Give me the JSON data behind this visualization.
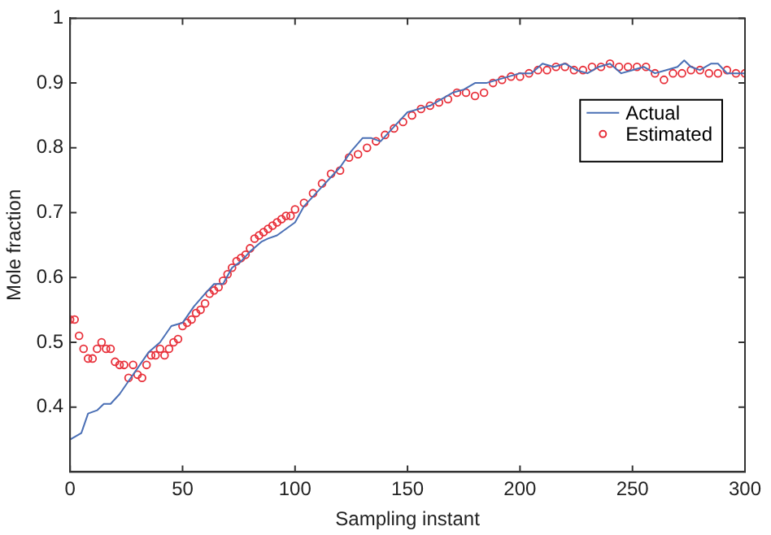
{
  "chart_data": {
    "type": "line",
    "xlabel": "Sampling instant",
    "ylabel": "Mole fraction",
    "xlim": [
      0,
      300
    ],
    "xticks": [
      0,
      50,
      100,
      150,
      200,
      250,
      300
    ],
    "ylim": [
      0.3,
      1
    ],
    "yticks": [
      0.4,
      0.5,
      0.6,
      0.7,
      0.8,
      0.9,
      1
    ],
    "grid": false,
    "legend": "right",
    "series": [
      {
        "name": "Actual",
        "color": "#4a6fb5",
        "marker": "none",
        "x": [
          0,
          5,
          8,
          12,
          15,
          18,
          22,
          26,
          30,
          35,
          40,
          45,
          50,
          55,
          60,
          64,
          68,
          72,
          76,
          80,
          85,
          88,
          92,
          96,
          100,
          104,
          108,
          112,
          116,
          120,
          125,
          130,
          134,
          138,
          142,
          146,
          150,
          155,
          160,
          165,
          170,
          175,
          180,
          185,
          190,
          195,
          200,
          205,
          210,
          215,
          220,
          225,
          230,
          235,
          240,
          245,
          250,
          255,
          260,
          265,
          270,
          273,
          276,
          280,
          285,
          288,
          292,
          296,
          300
        ],
        "values": [
          0.35,
          0.36,
          0.39,
          0.395,
          0.405,
          0.405,
          0.42,
          0.44,
          0.46,
          0.485,
          0.5,
          0.525,
          0.53,
          0.555,
          0.575,
          0.59,
          0.59,
          0.615,
          0.625,
          0.64,
          0.655,
          0.66,
          0.665,
          0.675,
          0.685,
          0.71,
          0.725,
          0.74,
          0.755,
          0.77,
          0.795,
          0.815,
          0.815,
          0.81,
          0.825,
          0.84,
          0.855,
          0.86,
          0.865,
          0.875,
          0.885,
          0.89,
          0.9,
          0.9,
          0.905,
          0.91,
          0.915,
          0.915,
          0.93,
          0.925,
          0.93,
          0.92,
          0.915,
          0.925,
          0.93,
          0.915,
          0.92,
          0.925,
          0.915,
          0.92,
          0.925,
          0.935,
          0.925,
          0.92,
          0.93,
          0.93,
          0.915,
          0.915,
          0.915
        ]
      },
      {
        "name": "Estimated",
        "type": "scatter",
        "color": "#e8303a",
        "marker": "circle",
        "x": [
          0,
          2,
          4,
          6,
          8,
          10,
          12,
          14,
          16,
          18,
          20,
          22,
          24,
          26,
          28,
          30,
          32,
          34,
          36,
          38,
          40,
          42,
          44,
          46,
          48,
          50,
          52,
          54,
          56,
          58,
          60,
          62,
          64,
          66,
          68,
          70,
          72,
          74,
          76,
          78,
          80,
          82,
          84,
          86,
          88,
          90,
          92,
          94,
          96,
          98,
          100,
          104,
          108,
          112,
          116,
          120,
          124,
          128,
          132,
          136,
          140,
          144,
          148,
          152,
          156,
          160,
          164,
          168,
          172,
          176,
          180,
          184,
          188,
          192,
          196,
          200,
          204,
          208,
          212,
          216,
          220,
          224,
          228,
          232,
          236,
          240,
          244,
          248,
          252,
          256,
          260,
          264,
          268,
          272,
          276,
          280,
          284,
          288,
          292,
          296,
          300
        ],
        "values": [
          0.535,
          0.535,
          0.51,
          0.49,
          0.475,
          0.475,
          0.49,
          0.5,
          0.49,
          0.49,
          0.47,
          0.465,
          0.465,
          0.445,
          0.465,
          0.45,
          0.445,
          0.465,
          0.48,
          0.48,
          0.49,
          0.48,
          0.49,
          0.5,
          0.505,
          0.525,
          0.53,
          0.535,
          0.545,
          0.55,
          0.56,
          0.575,
          0.58,
          0.585,
          0.595,
          0.605,
          0.615,
          0.625,
          0.63,
          0.635,
          0.645,
          0.66,
          0.665,
          0.67,
          0.675,
          0.68,
          0.685,
          0.69,
          0.695,
          0.695,
          0.705,
          0.715,
          0.73,
          0.745,
          0.76,
          0.765,
          0.785,
          0.79,
          0.8,
          0.81,
          0.82,
          0.83,
          0.84,
          0.85,
          0.86,
          0.865,
          0.87,
          0.875,
          0.885,
          0.885,
          0.88,
          0.885,
          0.9,
          0.905,
          0.91,
          0.91,
          0.915,
          0.92,
          0.92,
          0.925,
          0.925,
          0.92,
          0.92,
          0.925,
          0.925,
          0.93,
          0.925,
          0.925,
          0.925,
          0.925,
          0.915,
          0.905,
          0.915,
          0.915,
          0.92,
          0.92,
          0.915,
          0.915,
          0.92,
          0.915,
          0.915
        ]
      }
    ]
  }
}
